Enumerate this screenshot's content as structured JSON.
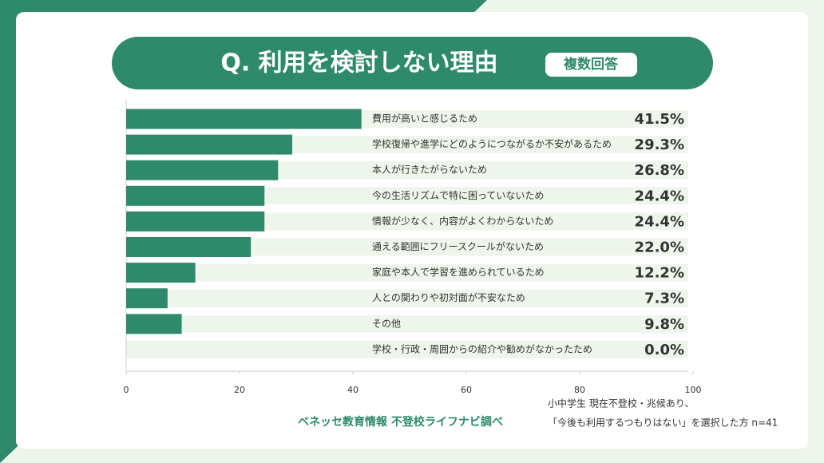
{
  "chart_data": {
    "type": "hbar",
    "title": "Q. 利用を検討しない理由",
    "tag": "複数回答",
    "categories": [
      "費用が高いと感じるため",
      "学校復帰や進学にどのようにつながるか不安があるため",
      "本人が行きたがらないため",
      "今の生活リズムで特に困っていないため",
      "情報が少なく、内容がよくわからないため",
      "通える範囲にフリースクールがないため",
      "家庭や本人で学習を進められているため",
      "人との関わりや初対面が不安なため",
      "その他",
      "学校・行政・周囲からの紹介や勧めがなかったため"
    ],
    "values": [
      41.5,
      29.3,
      26.8,
      24.4,
      24.4,
      22.0,
      12.2,
      7.3,
      9.8,
      0.0
    ],
    "value_labels": [
      "41.5%",
      "29.3%",
      "26.8%",
      "24.4%",
      "24.4%",
      "22.0%",
      "12.2%",
      "7.3%",
      "9.8%",
      "0.0%"
    ],
    "color": "#2f8a6b",
    "xlim": [
      0,
      100
    ],
    "xticks": [
      0,
      20,
      40,
      60,
      80,
      100
    ],
    "source": "ベネッセ教育情報 不登校ライフナビ調べ",
    "note": [
      "小中学生 現在不登校・兆候あり、",
      "「今後も利用するつもりはない」を選択した方 n=41"
    ]
  }
}
